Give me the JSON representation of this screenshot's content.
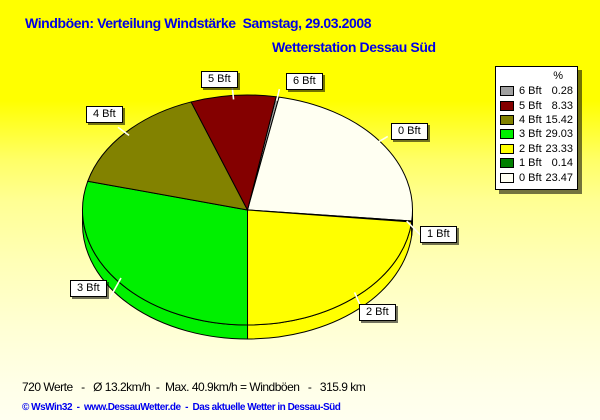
{
  "header": {
    "title": "Windböen: Verteilung Windstärke  Samstag, 29.03.2008",
    "subtitle": "Wetterstation Dessau Süd"
  },
  "footer": {
    "stats": "720 Werte   -   Ø 13.2km/h  -  Max. 40.9km/h = Windböen   -   315.9 km",
    "credit_left": "© WsWin32  -  ",
    "credit_url": "www.DessauWetter.de",
    "credit_right": "  -  Das aktuelle Wetter in Dessau-Süd"
  },
  "chart_data": {
    "type": "pie",
    "style": "3d-ellipse",
    "title": "Windböen: Verteilung Windstärke Samstag, 29.03.2008",
    "subtitle": "Wetterstation Dessau Süd",
    "unit": "%",
    "legend_header": "%",
    "legend_position": "top-right",
    "slices": [
      {
        "label": "6 Bft",
        "value": 0.28,
        "value_label": "0.28",
        "color": "#a0a0a0"
      },
      {
        "label": "5 Bft",
        "value": 8.33,
        "value_label": "8.33",
        "color": "#840000"
      },
      {
        "label": "4 Bft",
        "value": 15.42,
        "value_label": "15.42",
        "color": "#828200"
      },
      {
        "label": "3 Bft",
        "value": 29.03,
        "value_label": "29.03",
        "color": "#00f000"
      },
      {
        "label": "2 Bft",
        "value": 23.33,
        "value_label": "23.33",
        "color": "#ffff00"
      },
      {
        "label": "1 Bft",
        "value": 0.14,
        "value_label": "0.14",
        "color": "#008000"
      },
      {
        "label": "0 Bft",
        "value": 23.47,
        "value_label": "23.47",
        "color": "#fffff2"
      }
    ],
    "pie_order": [
      0,
      6,
      5,
      4,
      3,
      2,
      1
    ],
    "start_angle_deg": 10
  }
}
